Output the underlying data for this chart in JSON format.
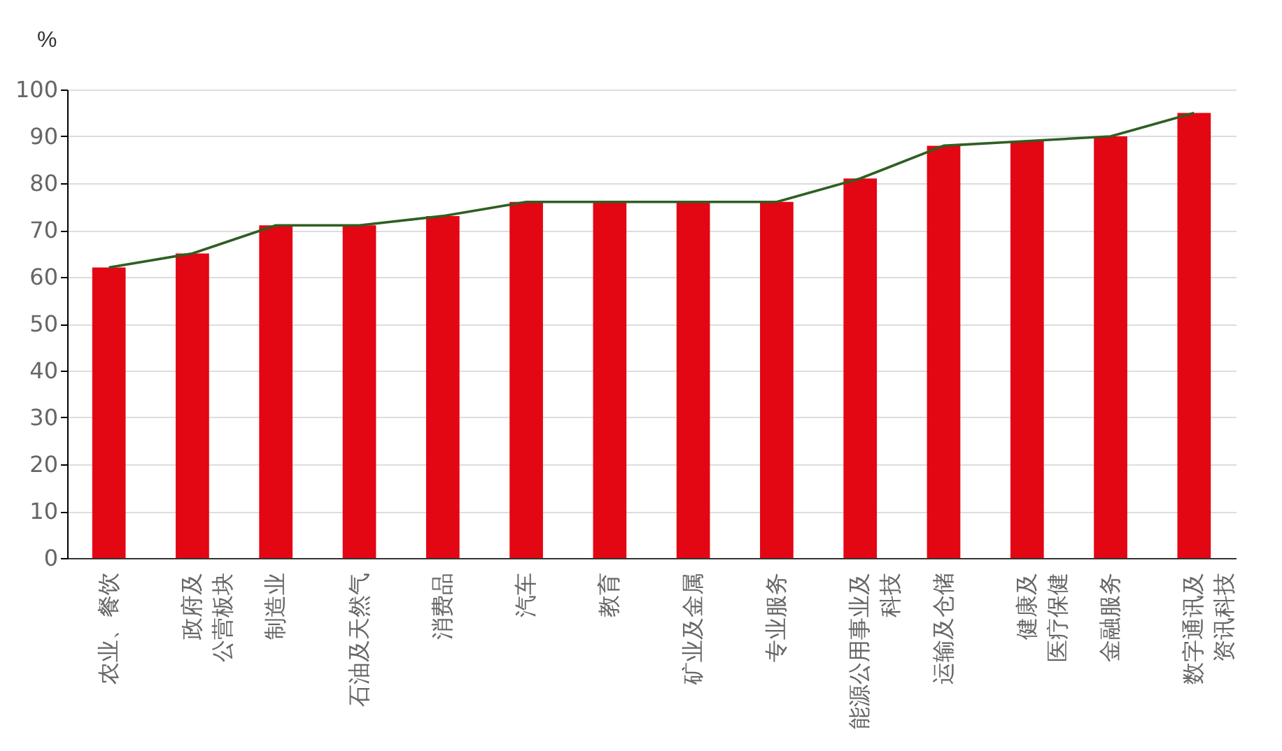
{
  "chart_data": {
    "type": "bar",
    "ylabel": "%",
    "categories": [
      "农业、餐饮",
      "政府及公营板块",
      "制造业",
      "石油及天然气",
      "消费品",
      "汽车",
      "教育",
      "矿业及金属",
      "专业服务",
      "能源公用事业及科技",
      "运输及仓储",
      "健康及医疗保健",
      "金融服务",
      "数字通讯及资讯科技"
    ],
    "series": [
      {
        "color": "#e30613",
        "values": [
          62,
          65,
          71,
          71,
          73,
          76,
          76,
          76,
          76,
          81,
          88,
          89,
          90,
          95
        ]
      },
      {
        "type": "line",
        "color": "#2f5f22",
        "values": [
          62,
          65,
          71,
          71,
          73,
          76,
          76,
          76,
          76,
          81,
          88,
          89,
          90,
          95
        ]
      }
    ],
    "ylim": [
      0,
      100
    ],
    "yticks": [
      0,
      10,
      20,
      30,
      40,
      50,
      60,
      70,
      80,
      90,
      100
    ],
    "grid": "y",
    "marker": "none",
    "line_style": "solid"
  }
}
